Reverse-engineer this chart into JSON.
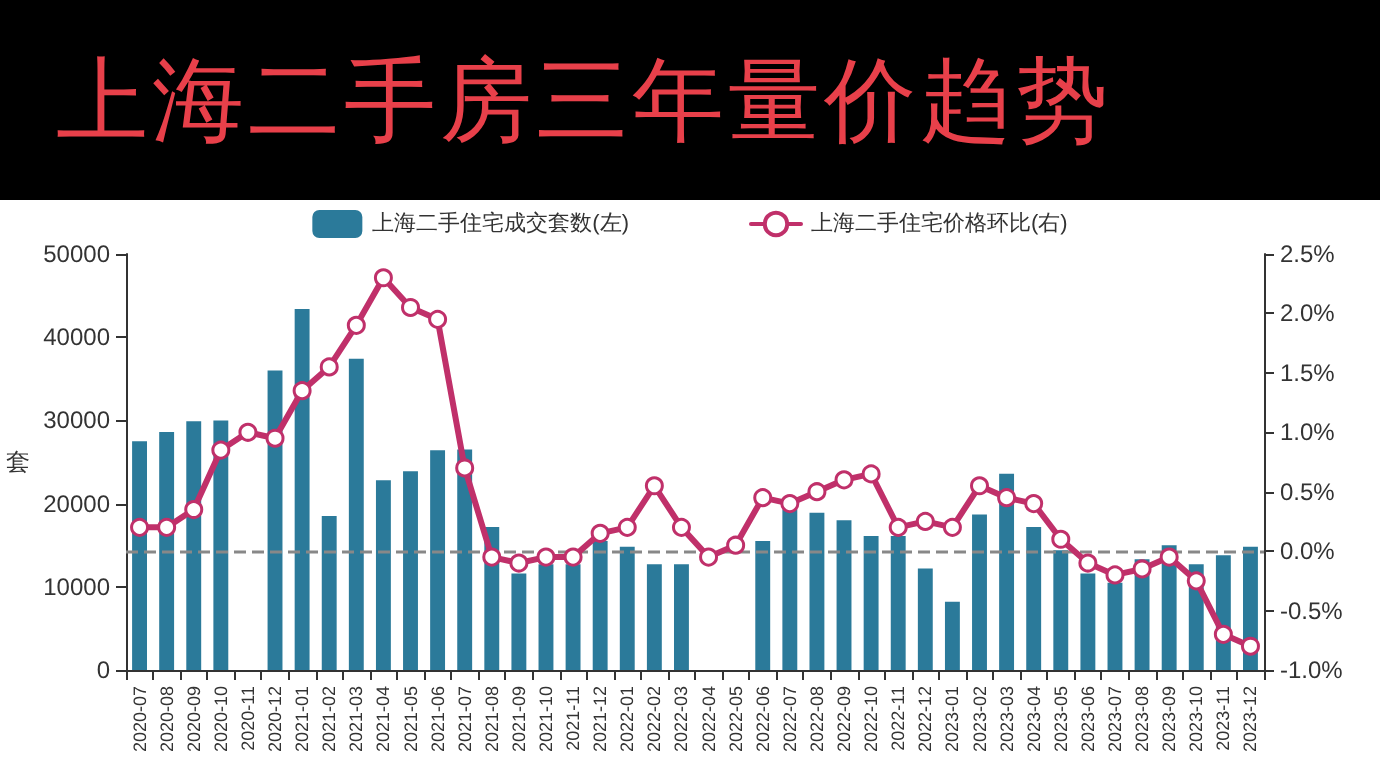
{
  "chart_data": {
    "type": "bar",
    "title": "上海二手房三年量价趋势",
    "ylabel": "套",
    "categories": [
      "2020-07",
      "2020-08",
      "2020-09",
      "2020-10",
      "2020-11",
      "2020-12",
      "2021-01",
      "2021-02",
      "2021-03",
      "2021-04",
      "2021-05",
      "2021-06",
      "2021-07",
      "2021-08",
      "2021-09",
      "2021-10",
      "2021-11",
      "2021-12",
      "2022-01",
      "2022-02",
      "2022-03",
      "2022-04",
      "2022-05",
      "2022-06",
      "2022-07",
      "2022-08",
      "2022-09",
      "2022-10",
      "2022-11",
      "2022-12",
      "2023-01",
      "2023-02",
      "2023-03",
      "2023-04",
      "2023-05",
      "2023-06",
      "2023-07",
      "2023-08",
      "2023-09",
      "2023-10",
      "2023-11",
      "2023-12"
    ],
    "series": [
      {
        "name": "上海二手住宅成交套数(左)",
        "color": "#2b7a9a",
        "values": [
          27500,
          28600,
          29900,
          30000,
          null,
          36000,
          43400,
          18500,
          37400,
          22800,
          23900,
          26400,
          26500,
          17200,
          11600,
          12700,
          12700,
          15500,
          14800,
          12700,
          12700,
          null,
          null,
          15500,
          19300,
          18900,
          18000,
          16100,
          16100,
          12200,
          8200,
          18700,
          23600,
          17200,
          14400,
          11600,
          10500,
          13300,
          15000,
          12700,
          13800,
          14800
        ]
      },
      {
        "name": "上海二手住宅价格环比(右)",
        "type": "line",
        "axis": "y2",
        "color": "#c0306a",
        "marker": "circle",
        "values": [
          0.2,
          0.2,
          0.35,
          0.85,
          1.0,
          0.95,
          1.35,
          1.55,
          1.9,
          2.3,
          2.05,
          1.95,
          0.7,
          -0.05,
          -0.1,
          -0.05,
          -0.05,
          0.15,
          0.2,
          0.55,
          0.2,
          -0.05,
          0.05,
          0.45,
          0.4,
          0.5,
          0.6,
          0.65,
          0.2,
          0.25,
          0.2,
          0.55,
          0.45,
          0.4,
          0.1,
          -0.1,
          -0.2,
          -0.15,
          -0.05,
          -0.25,
          -0.7,
          -0.8
        ]
      }
    ],
    "ylim": [
      0,
      50000
    ],
    "yticks": [
      0,
      10000,
      20000,
      30000,
      40000,
      50000
    ],
    "y2lim": [
      -1,
      2.5
    ],
    "y2ticks": [
      {
        "value": -1,
        "label": "-1.0%"
      },
      {
        "value": -0.5,
        "label": "-0.5%"
      },
      {
        "value": 0,
        "label": "0.0%"
      },
      {
        "value": 0.5,
        "label": "0.5%"
      },
      {
        "value": 1,
        "label": "1.0%"
      },
      {
        "value": 1.5,
        "label": "1.5%"
      },
      {
        "value": 2,
        "label": "2.0%"
      },
      {
        "value": 2.5,
        "label": "2.5%"
      }
    ],
    "ref_lines": [
      {
        "axis": "y2",
        "value": 0,
        "line_style": "dashed",
        "color": "#888888"
      }
    ],
    "legend": "top",
    "grid": false
  }
}
